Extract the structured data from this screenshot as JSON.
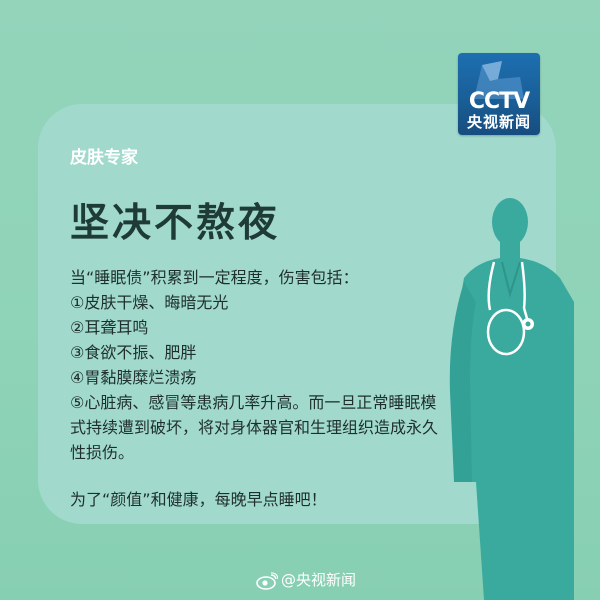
{
  "logo": {
    "brand": "CCTV",
    "name": "央视新闻"
  },
  "card": {
    "category": "皮肤专家",
    "title": "坚决不熬夜",
    "lines": [
      "当“睡眠债”积累到一定程度，伤害包括：",
      "①皮肤干燥、晦暗无光",
      "②耳聋耳鸣",
      "③食欲不振、肥胖",
      "④胃黏膜糜烂溃疡",
      "⑤心脏病、感冒等患病几率升高。而一旦正常睡眠模",
      "式持续遭到破坏，将对身体器官和生理组织造成永久",
      "性损伤。"
    ],
    "closing": "为了“颜值”和健康，每晚早点睡吧！"
  },
  "watermark": {
    "text": "@央视新闻"
  },
  "colors": {
    "background": "#8ed1b6",
    "card": "#a1dacd",
    "doctor": "#3aaa9e",
    "title": "#1f3b36",
    "logo_blue": "#1a5f98"
  },
  "icons": [
    "cctv-logo-icon",
    "doctor-illustration",
    "stethoscope-icon",
    "weibo-eye-icon"
  ]
}
